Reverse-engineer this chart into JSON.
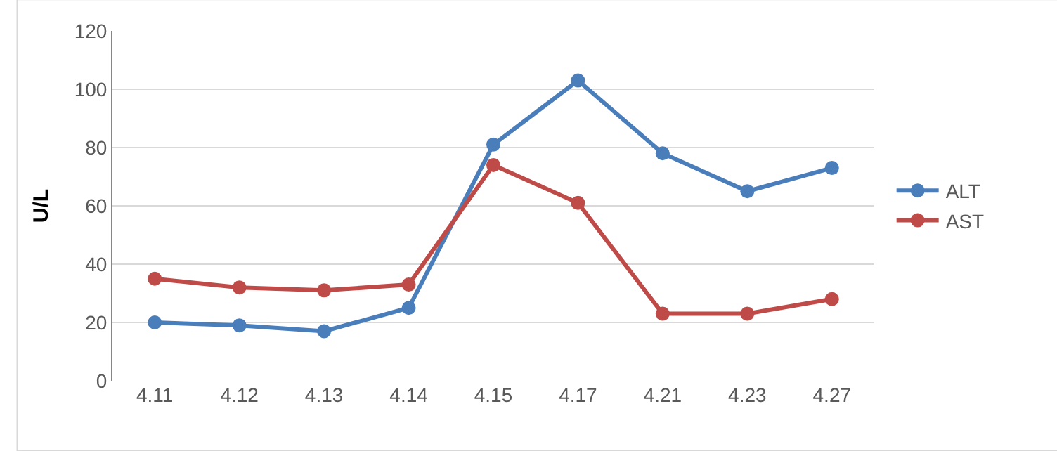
{
  "chart_data": {
    "type": "line",
    "ylabel": "U/L",
    "categories": [
      "4.11",
      "4.12",
      "4.13",
      "4.14",
      "4.15",
      "4.17",
      "4.21",
      "4.23",
      "4.27"
    ],
    "series": [
      {
        "name": "ALT",
        "color": "#4a7ebb",
        "values": [
          20,
          19,
          17,
          25,
          81,
          103,
          78,
          65,
          73
        ]
      },
      {
        "name": "AST",
        "color": "#be4b48",
        "values": [
          35,
          32,
          31,
          33,
          74,
          61,
          23,
          23,
          28
        ]
      }
    ],
    "ylim": [
      0,
      120
    ],
    "yticks": [
      0,
      20,
      40,
      60,
      80,
      100,
      120
    ],
    "grid": "y",
    "legend": "right",
    "marker": "circle",
    "line_style": "solid"
  }
}
